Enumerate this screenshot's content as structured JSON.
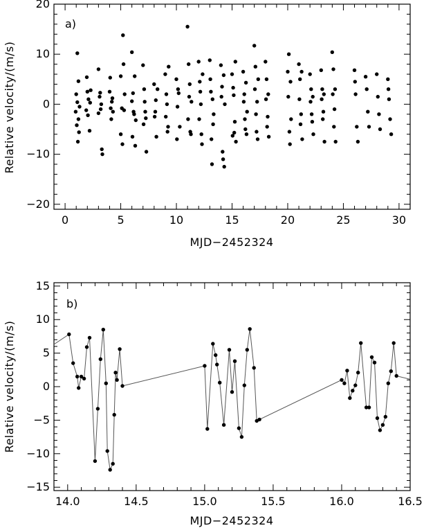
{
  "chart_data": [
    {
      "type": "scatter",
      "panel_label": "a)",
      "xlabel": "MJD−2452324",
      "ylabel": "Relative velocity/(m/s)",
      "xlim": [
        -1,
        31
      ],
      "ylim": [
        -21,
        20
      ],
      "xticks": [
        0,
        5,
        10,
        15,
        20,
        25,
        30
      ],
      "yticks": [
        -20,
        -10,
        0,
        10,
        20
      ],
      "xtick_labels": [
        "0",
        "5",
        "10",
        "15",
        "20",
        "25",
        "30"
      ],
      "ytick_labels": [
        "−20",
        "−10",
        "0",
        "10",
        "20"
      ],
      "grid": false,
      "series": [
        {
          "points": [
            [
              1.1,
              10.2
            ],
            [
              1.2,
              4.6
            ],
            [
              1.0,
              2.0
            ],
            [
              1.3,
              -0.5
            ],
            [
              1.05,
              -4.2
            ],
            [
              1.15,
              -7.5
            ],
            [
              1.25,
              -5.6
            ],
            [
              0.95,
              -1.5
            ],
            [
              1.1,
              0.4
            ],
            [
              1.2,
              -3.0
            ],
            [
              1.9,
              -1.2
            ],
            [
              2.0,
              2.5
            ],
            [
              2.1,
              1.0
            ],
            [
              2.2,
              -5.3
            ],
            [
              2.3,
              2.8
            ],
            [
              1.95,
              5.4
            ],
            [
              2.05,
              -2.2
            ],
            [
              2.25,
              0.3
            ],
            [
              3.0,
              7.0
            ],
            [
              3.1,
              1.5
            ],
            [
              3.2,
              -1.0
            ],
            [
              3.3,
              -9.0
            ],
            [
              3.35,
              -10.0
            ],
            [
              3.0,
              -1.8
            ],
            [
              3.15,
              2.3
            ],
            [
              3.25,
              0.0
            ],
            [
              4.0,
              2.5
            ],
            [
              4.1,
              -0.8
            ],
            [
              4.2,
              0.5
            ],
            [
              4.3,
              -1.5
            ],
            [
              4.05,
              5.3
            ],
            [
              4.15,
              -3.0
            ],
            [
              4.25,
              1.2
            ],
            [
              5.0,
              5.6
            ],
            [
              5.1,
              -0.8
            ],
            [
              5.2,
              13.8
            ],
            [
              5.3,
              -1.2
            ],
            [
              5.0,
              -6.0
            ],
            [
              5.15,
              -8.0
            ],
            [
              5.25,
              8.0
            ],
            [
              5.35,
              2.0
            ],
            [
              6.0,
              10.4
            ],
            [
              6.1,
              2.2
            ],
            [
              6.2,
              -2.0
            ],
            [
              6.3,
              -8.3
            ],
            [
              6.05,
              -6.5
            ],
            [
              6.15,
              -1.5
            ],
            [
              6.25,
              5.6
            ],
            [
              6.35,
              -3.2
            ],
            [
              6.0,
              0.6
            ],
            [
              7.0,
              7.8
            ],
            [
              7.1,
              3.0
            ],
            [
              7.2,
              -1.5
            ],
            [
              7.3,
              -9.5
            ],
            [
              7.05,
              -4.0
            ],
            [
              7.15,
              0.5
            ],
            [
              7.25,
              -2.8
            ],
            [
              8.0,
              4.0
            ],
            [
              8.1,
              -1.5
            ],
            [
              8.2,
              -6.5
            ],
            [
              8.3,
              3.0
            ],
            [
              8.05,
              -2.5
            ],
            [
              8.15,
              0.8
            ],
            [
              9.0,
              6.0
            ],
            [
              9.1,
              2.0
            ],
            [
              9.2,
              -5.5
            ],
            [
              9.3,
              7.5
            ],
            [
              9.05,
              -2.5
            ],
            [
              9.15,
              0.0
            ],
            [
              9.25,
              -4.5
            ],
            [
              10.0,
              5.0
            ],
            [
              10.1,
              -0.5
            ],
            [
              10.2,
              2.2
            ],
            [
              10.3,
              -4.5
            ],
            [
              10.05,
              -7.0
            ],
            [
              10.15,
              3.0
            ],
            [
              11.0,
              15.5
            ],
            [
              11.1,
              8.0
            ],
            [
              11.2,
              4.0
            ],
            [
              11.3,
              -6.0
            ],
            [
              11.05,
              -3.0
            ],
            [
              11.15,
              1.5
            ],
            [
              11.25,
              -5.5
            ],
            [
              11.35,
              0.5
            ],
            [
              12.0,
              8.5
            ],
            [
              12.1,
              4.5
            ],
            [
              12.2,
              0.0
            ],
            [
              12.3,
              -8.0
            ],
            [
              12.05,
              -3.0
            ],
            [
              12.15,
              2.5
            ],
            [
              12.25,
              -6.0
            ],
            [
              12.35,
              6.0
            ],
            [
              13.0,
              8.8
            ],
            [
              13.1,
              2.5
            ],
            [
              13.2,
              -12.0
            ],
            [
              13.3,
              -4.0
            ],
            [
              13.05,
              5.0
            ],
            [
              13.15,
              -7.0
            ],
            [
              13.25,
              1.0
            ],
            [
              13.35,
              -2.0
            ],
            [
              14.0,
              7.8
            ],
            [
              14.1,
              3.5
            ],
            [
              14.2,
              -11.0
            ],
            [
              14.3,
              -12.5
            ],
            [
              14.05,
              1.5
            ],
            [
              14.15,
              -9.5
            ],
            [
              14.25,
              5.8
            ],
            [
              14.35,
              0.0
            ],
            [
              15.0,
              6.0
            ],
            [
              15.1,
              3.3
            ],
            [
              15.2,
              -5.7
            ],
            [
              15.3,
              8.5
            ],
            [
              15.05,
              -6.3
            ],
            [
              15.15,
              1.8
            ],
            [
              15.25,
              -3.5
            ],
            [
              15.35,
              -7.5
            ],
            [
              16.0,
              6.5
            ],
            [
              16.1,
              2.0
            ],
            [
              16.2,
              -5.0
            ],
            [
              16.3,
              -6.0
            ],
            [
              16.05,
              0.5
            ],
            [
              16.15,
              -3.0
            ],
            [
              16.25,
              4.3
            ],
            [
              16.35,
              -1.5
            ],
            [
              17.0,
              11.7
            ],
            [
              17.1,
              7.5
            ],
            [
              17.2,
              -5.5
            ],
            [
              17.3,
              -7.0
            ],
            [
              17.05,
              3.0
            ],
            [
              17.15,
              -2.0
            ],
            [
              17.25,
              0.5
            ],
            [
              17.35,
              5.0
            ],
            [
              18.0,
              8.5
            ],
            [
              18.1,
              5.0
            ],
            [
              18.2,
              -2.5
            ],
            [
              18.3,
              -6.5
            ],
            [
              18.05,
              1.0
            ],
            [
              18.15,
              -4.5
            ],
            [
              18.25,
              2.0
            ],
            [
              20.0,
              6.5
            ],
            [
              20.1,
              10.0
            ],
            [
              20.2,
              -8.0
            ],
            [
              20.3,
              -3.0
            ],
            [
              20.05,
              1.5
            ],
            [
              20.15,
              -5.5
            ],
            [
              20.25,
              4.5
            ],
            [
              21.0,
              8.0
            ],
            [
              21.1,
              5.0
            ],
            [
              21.2,
              -2.0
            ],
            [
              21.3,
              -7.0
            ],
            [
              21.05,
              1.0
            ],
            [
              21.15,
              -4.0
            ],
            [
              21.25,
              6.5
            ],
            [
              22.0,
              6.0
            ],
            [
              22.1,
              3.0
            ],
            [
              22.2,
              -3.5
            ],
            [
              22.3,
              -6.0
            ],
            [
              22.05,
              0.5
            ],
            [
              22.15,
              -2.0
            ],
            [
              22.25,
              1.5
            ],
            [
              23.0,
              6.8
            ],
            [
              23.1,
              3.0
            ],
            [
              23.2,
              -1.5
            ],
            [
              23.3,
              -7.5
            ],
            [
              23.05,
              1.0
            ],
            [
              23.15,
              -3.0
            ],
            [
              23.25,
              2.0
            ],
            [
              24.0,
              10.4
            ],
            [
              24.1,
              7.0
            ],
            [
              24.2,
              -1.0
            ],
            [
              24.3,
              -7.5
            ],
            [
              24.05,
              2.0
            ],
            [
              24.15,
              -4.5
            ],
            [
              24.25,
              3.0
            ],
            [
              26.0,
              6.8
            ],
            [
              26.1,
              2.0
            ],
            [
              26.2,
              -4.5
            ],
            [
              26.3,
              -7.5
            ],
            [
              26.05,
              4.5
            ],
            [
              27.0,
              5.5
            ],
            [
              27.1,
              3.0
            ],
            [
              27.2,
              -1.5
            ],
            [
              27.3,
              -4.5
            ],
            [
              28.0,
              6.0
            ],
            [
              28.1,
              1.5
            ],
            [
              28.2,
              -2.0
            ],
            [
              28.3,
              -5.0
            ],
            [
              29.0,
              5.0
            ],
            [
              29.1,
              1.0
            ],
            [
              29.2,
              -3.0
            ],
            [
              29.3,
              -6.0
            ],
            [
              29.05,
              3.0
            ]
          ]
        }
      ]
    },
    {
      "type": "line",
      "panel_label": "b)",
      "xlabel": "MJD−2452324",
      "ylabel": "Relative velocity/(m/s)",
      "xlim": [
        13.9,
        16.5
      ],
      "ylim": [
        -15.5,
        15.5
      ],
      "xticks": [
        14.0,
        14.5,
        15.0,
        15.5,
        16.0,
        16.5
      ],
      "yticks": [
        -15,
        -10,
        -5,
        0,
        5,
        10,
        15
      ],
      "xtick_labels": [
        "14.0",
        "14.5",
        "15.0",
        "15.5",
        "16.0",
        "16.5"
      ],
      "ytick_labels": [
        "−15",
        "−10",
        "−5",
        "0",
        "5",
        "10",
        "15"
      ],
      "grid": false,
      "series": [
        {
          "points": [
            [
              13.9,
              6.3
            ],
            [
              14.01,
              7.8
            ],
            [
              14.04,
              3.5
            ],
            [
              14.07,
              1.5
            ],
            [
              14.08,
              -0.2
            ],
            [
              14.1,
              1.5
            ],
            [
              14.12,
              1.2
            ],
            [
              14.14,
              5.9
            ],
            [
              14.16,
              7.3
            ],
            [
              14.2,
              -11.1
            ],
            [
              14.22,
              -3.3
            ],
            [
              14.24,
              4.1
            ],
            [
              14.26,
              8.5
            ],
            [
              14.28,
              0.5
            ],
            [
              14.29,
              -9.6
            ],
            [
              14.31,
              -12.4
            ],
            [
              14.33,
              -11.5
            ],
            [
              14.34,
              -4.2
            ],
            [
              14.35,
              2.1
            ],
            [
              14.36,
              1.0
            ],
            [
              14.38,
              5.6
            ],
            [
              14.4,
              0.1
            ],
            [
              15.0,
              3.1
            ],
            [
              15.02,
              -6.3
            ],
            [
              15.06,
              6.4
            ],
            [
              15.08,
              4.7
            ],
            [
              15.09,
              3.3
            ],
            [
              15.11,
              0.6
            ],
            [
              15.14,
              -5.7
            ],
            [
              15.18,
              5.5
            ],
            [
              15.2,
              -0.8
            ],
            [
              15.22,
              3.8
            ],
            [
              15.25,
              -6.2
            ],
            [
              15.27,
              -7.5
            ],
            [
              15.29,
              0.2
            ],
            [
              15.31,
              5.5
            ],
            [
              15.33,
              8.6
            ],
            [
              15.36,
              2.8
            ],
            [
              15.38,
              -5.1
            ],
            [
              15.4,
              -4.9
            ],
            [
              16.0,
              1.0
            ],
            [
              16.02,
              0.5
            ],
            [
              16.04,
              2.4
            ],
            [
              16.06,
              -1.7
            ],
            [
              16.08,
              -0.6
            ],
            [
              16.1,
              0.2
            ],
            [
              16.12,
              2.1
            ],
            [
              16.14,
              6.5
            ],
            [
              16.18,
              -3.1
            ],
            [
              16.2,
              -3.1
            ],
            [
              16.22,
              4.4
            ],
            [
              16.24,
              3.6
            ],
            [
              16.26,
              -4.7
            ],
            [
              16.28,
              -6.5
            ],
            [
              16.3,
              -5.7
            ],
            [
              16.32,
              -4.5
            ],
            [
              16.34,
              0.5
            ],
            [
              16.36,
              2.3
            ],
            [
              16.38,
              6.5
            ],
            [
              16.4,
              1.6
            ],
            [
              16.5,
              1.1
            ]
          ]
        }
      ]
    }
  ]
}
